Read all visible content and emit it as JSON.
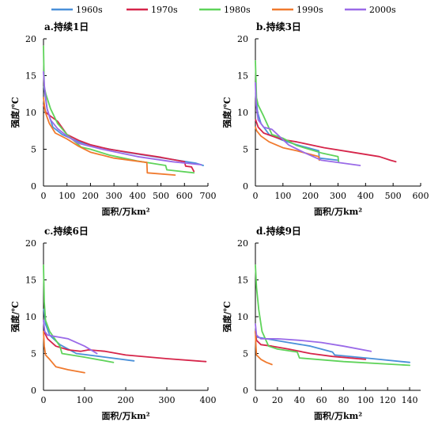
{
  "chart_data": [
    {
      "type": "line",
      "title": "a.持续1日",
      "xlabel": "面积/万km²",
      "ylabel": "强度/℃",
      "xlim": [
        0,
        700
      ],
      "ylim": [
        0,
        20
      ],
      "xticks": [
        0,
        100,
        200,
        300,
        400,
        500,
        600,
        700
      ],
      "yticks": [
        0,
        5,
        10,
        15,
        20
      ],
      "series": [
        {
          "name": "1960s",
          "color": "#4a90d9",
          "points": [
            [
              2,
              13.5
            ],
            [
              15,
              10.5
            ],
            [
              40,
              8
            ],
            [
              80,
              7
            ],
            [
              150,
              6
            ],
            [
              250,
              5.2
            ],
            [
              350,
              4.6
            ],
            [
              450,
              4.1
            ],
            [
              550,
              3.6
            ],
            [
              650,
              3.1
            ],
            [
              680,
              2.8
            ]
          ]
        },
        {
          "name": "1970s",
          "color": "#d6254a",
          "points": [
            [
              1,
              11
            ],
            [
              10,
              10
            ],
            [
              30,
              9.5
            ],
            [
              60,
              8.8
            ],
            [
              100,
              7
            ],
            [
              150,
              6.2
            ],
            [
              200,
              5.6
            ],
            [
              280,
              5
            ],
            [
              400,
              4.4
            ],
            [
              500,
              3.9
            ],
            [
              600,
              3.3
            ],
            [
              605,
              2.7
            ],
            [
              630,
              2.6
            ],
            [
              640,
              2
            ]
          ]
        },
        {
          "name": "1980s",
          "color": "#5fd35a",
          "points": [
            [
              0,
              19
            ],
            [
              3,
              13.5
            ],
            [
              10,
              12.5
            ],
            [
              30,
              10.5
            ],
            [
              60,
              8.5
            ],
            [
              100,
              7
            ],
            [
              160,
              5.3
            ],
            [
              200,
              5
            ],
            [
              280,
              4.2
            ],
            [
              400,
              3.4
            ],
            [
              520,
              2.8
            ],
            [
              525,
              2.2
            ],
            [
              640,
              1.8
            ]
          ]
        },
        {
          "name": "1990s",
          "color": "#f07a2e",
          "points": [
            [
              0,
              12
            ],
            [
              8,
              10
            ],
            [
              25,
              8.5
            ],
            [
              50,
              7.2
            ],
            [
              100,
              6.4
            ],
            [
              150,
              5.4
            ],
            [
              200,
              4.6
            ],
            [
              300,
              3.8
            ],
            [
              440,
              3.2
            ],
            [
              442,
              1.8
            ],
            [
              560,
              1.5
            ]
          ]
        },
        {
          "name": "2000s",
          "color": "#9a6ae8",
          "points": [
            [
              0,
              15.5
            ],
            [
              4,
              13.5
            ],
            [
              15,
              10.5
            ],
            [
              30,
              9
            ],
            [
              60,
              7.8
            ],
            [
              100,
              6.8
            ],
            [
              150,
              5.8
            ],
            [
              250,
              5
            ],
            [
              400,
              4
            ],
            [
              550,
              3.3
            ],
            [
              670,
              2.9
            ]
          ]
        }
      ]
    },
    {
      "type": "line",
      "title": "b.持续3日",
      "xlabel": "面积/万km²",
      "ylabel": "强度/℃",
      "xlim": [
        0,
        600
      ],
      "ylim": [
        0,
        20
      ],
      "xticks": [
        0,
        100,
        200,
        300,
        400,
        500,
        600
      ],
      "yticks": [
        0,
        5,
        10,
        15,
        20
      ],
      "series": [
        {
          "name": "1960s",
          "color": "#4a90d9",
          "points": [
            [
              1,
              12.5
            ],
            [
              8,
              10
            ],
            [
              20,
              8.5
            ],
            [
              50,
              7
            ],
            [
              100,
              6.2
            ],
            [
              150,
              5.6
            ],
            [
              230,
              4.8
            ],
            [
              232,
              3.8
            ],
            [
              300,
              3.5
            ]
          ]
        },
        {
          "name": "1970s",
          "color": "#d6254a",
          "points": [
            [
              1,
              9
            ],
            [
              10,
              8
            ],
            [
              30,
              7.2
            ],
            [
              60,
              6.8
            ],
            [
              100,
              6.3
            ],
            [
              150,
              6
            ],
            [
              250,
              5.2
            ],
            [
              350,
              4.6
            ],
            [
              450,
              4
            ],
            [
              490,
              3.5
            ],
            [
              510,
              3.3
            ]
          ]
        },
        {
          "name": "1980s",
          "color": "#5fd35a",
          "points": [
            [
              0,
              17
            ],
            [
              4,
              12
            ],
            [
              10,
              11
            ],
            [
              30,
              9.5
            ],
            [
              60,
              7
            ],
            [
              100,
              6.5
            ],
            [
              150,
              5.5
            ],
            [
              240,
              4.5
            ],
            [
              300,
              4
            ],
            [
              302,
              3.3
            ]
          ]
        },
        {
          "name": "1990s",
          "color": "#f07a2e",
          "points": [
            [
              0,
              8
            ],
            [
              5,
              7.5
            ],
            [
              20,
              6.8
            ],
            [
              50,
              6
            ],
            [
              100,
              5.2
            ],
            [
              150,
              4.8
            ],
            [
              230,
              4
            ],
            [
              232,
              3.5
            ]
          ]
        },
        {
          "name": "2000s",
          "color": "#9a6ae8",
          "points": [
            [
              0,
              14
            ],
            [
              3,
              11
            ],
            [
              10,
              9
            ],
            [
              30,
              8
            ],
            [
              60,
              7.7
            ],
            [
              80,
              7
            ],
            [
              120,
              5.6
            ],
            [
              180,
              4.5
            ],
            [
              240,
              3.5
            ],
            [
              380,
              2.8
            ]
          ]
        }
      ]
    },
    {
      "type": "line",
      "title": "c.持续6日",
      "xlabel": "面积/万km²",
      "ylabel": "强度/℃",
      "xlim": [
        0,
        400
      ],
      "ylim": [
        0,
        20
      ],
      "xticks": [
        0,
        100,
        200,
        300,
        400
      ],
      "yticks": [
        0,
        5,
        10,
        15,
        20
      ],
      "series": [
        {
          "name": "1960s",
          "color": "#4a90d9",
          "points": [
            [
              1,
              11
            ],
            [
              5,
              9
            ],
            [
              15,
              7.5
            ],
            [
              40,
              6.2
            ],
            [
              80,
              5
            ],
            [
              150,
              4.5
            ],
            [
              220,
              4
            ]
          ]
        },
        {
          "name": "1970s",
          "color": "#d6254a",
          "points": [
            [
              1,
              8
            ],
            [
              10,
              7
            ],
            [
              30,
              6
            ],
            [
              60,
              5.5
            ],
            [
              90,
              5.3
            ],
            [
              110,
              5.5
            ],
            [
              150,
              5.3
            ],
            [
              200,
              4.8
            ],
            [
              300,
              4.3
            ],
            [
              395,
              3.9
            ]
          ]
        },
        {
          "name": "1980s",
          "color": "#5fd35a",
          "points": [
            [
              0,
              17
            ],
            [
              2,
              12
            ],
            [
              5,
              9.5
            ],
            [
              15,
              8
            ],
            [
              40,
              6
            ],
            [
              45,
              5
            ],
            [
              100,
              4.5
            ],
            [
              170,
              3.8
            ]
          ]
        },
        {
          "name": "1990s",
          "color": "#f07a2e",
          "points": [
            [
              0,
              8
            ],
            [
              2,
              6
            ],
            [
              5,
              4.8
            ],
            [
              15,
              4.2
            ],
            [
              30,
              3.2
            ],
            [
              60,
              2.8
            ],
            [
              100,
              2.4
            ]
          ]
        },
        {
          "name": "2000s",
          "color": "#9a6ae8",
          "points": [
            [
              0,
              9.5
            ],
            [
              3,
              8
            ],
            [
              10,
              7.5
            ],
            [
              30,
              7.3
            ],
            [
              60,
              7
            ],
            [
              100,
              6
            ],
            [
              130,
              5
            ]
          ]
        }
      ]
    },
    {
      "type": "line",
      "title": "d.持续9日",
      "xlabel": "面积/万km²",
      "ylabel": "强度/℃",
      "xlim": [
        0,
        150
      ],
      "ylim": [
        0,
        20
      ],
      "xticks": [
        0,
        20,
        40,
        60,
        80,
        100,
        120,
        140
      ],
      "yticks": [
        0,
        5,
        10,
        15,
        20
      ],
      "series": [
        {
          "name": "1960s",
          "color": "#4a90d9",
          "points": [
            [
              0,
              7.8
            ],
            [
              2,
              7.2
            ],
            [
              10,
              7
            ],
            [
              30,
              6.5
            ],
            [
              50,
              6
            ],
            [
              70,
              5.2
            ],
            [
              72,
              4.8
            ],
            [
              100,
              4.4
            ],
            [
              140,
              3.8
            ]
          ]
        },
        {
          "name": "1970s",
          "color": "#d6254a",
          "points": [
            [
              0,
              8
            ],
            [
              1,
              6.8
            ],
            [
              5,
              6.2
            ],
            [
              15,
              6
            ],
            [
              30,
              5.6
            ],
            [
              50,
              5
            ],
            [
              70,
              4.6
            ],
            [
              100,
              4.2
            ]
          ]
        },
        {
          "name": "1980s",
          "color": "#5fd35a",
          "points": [
            [
              0,
              17
            ],
            [
              1,
              14
            ],
            [
              3,
              11
            ],
            [
              6,
              8
            ],
            [
              12,
              6
            ],
            [
              20,
              5.6
            ],
            [
              38,
              5.2
            ],
            [
              40,
              4.4
            ],
            [
              80,
              3.9
            ],
            [
              140,
              3.4
            ]
          ]
        },
        {
          "name": "1990s",
          "color": "#f07a2e",
          "points": [
            [
              0,
              8
            ],
            [
              0.5,
              6
            ],
            [
              1,
              4.8
            ],
            [
              5,
              4.2
            ],
            [
              10,
              3.8
            ],
            [
              15,
              3.5
            ]
          ]
        },
        {
          "name": "2000s",
          "color": "#9a6ae8",
          "points": [
            [
              0,
              9
            ],
            [
              1,
              7.5
            ],
            [
              5,
              7
            ],
            [
              20,
              7
            ],
            [
              40,
              6.8
            ],
            [
              60,
              6.5
            ],
            [
              80,
              6
            ],
            [
              105,
              5.3
            ]
          ]
        }
      ]
    }
  ],
  "legend": [
    {
      "name": "1960s",
      "color": "#4a90d9"
    },
    {
      "name": "1970s",
      "color": "#d6254a"
    },
    {
      "name": "1980s",
      "color": "#5fd35a"
    },
    {
      "name": "1990s",
      "color": "#f07a2e"
    },
    {
      "name": "2000s",
      "color": "#9a6ae8"
    }
  ]
}
